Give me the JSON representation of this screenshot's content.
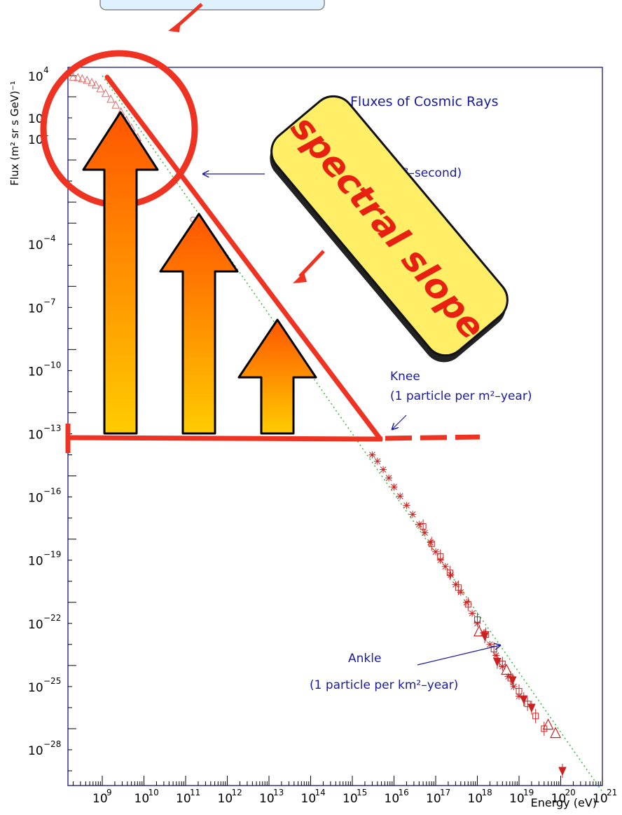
{
  "chart_data": {
    "type": "scatter",
    "title": "Fluxes of Cosmic Rays",
    "xlabel": "Energy (eV)",
    "ylabel": "Flux (m² sr s GeV)⁻¹",
    "x_scale": "log",
    "y_scale": "log",
    "xlim": [
      150000000.0,
      1e+21
    ],
    "ylim": [
      2e-30,
      25000.0
    ],
    "x_ticks": [
      {
        "value": 1000000000.0,
        "base": "10",
        "exp": "9"
      },
      {
        "value": 10000000000.0,
        "base": "10",
        "exp": "10"
      },
      {
        "value": 100000000000.0,
        "base": "10",
        "exp": "11"
      },
      {
        "value": 1000000000000.0,
        "base": "10",
        "exp": "12"
      },
      {
        "value": 10000000000000.0,
        "base": "10",
        "exp": "13"
      },
      {
        "value": 100000000000000.0,
        "base": "10",
        "exp": "14"
      },
      {
        "value": 1000000000000000.0,
        "base": "10",
        "exp": "15"
      },
      {
        "value": 1e+16,
        "base": "10",
        "exp": "16"
      },
      {
        "value": 1e+17,
        "base": "10",
        "exp": "17"
      },
      {
        "value": 1e+18,
        "base": "10",
        "exp": "18"
      },
      {
        "value": 1e+19,
        "base": "10",
        "exp": "19"
      },
      {
        "value": 1e+20,
        "base": "10",
        "exp": "20"
      },
      {
        "value": 1e+21,
        "base": "10",
        "exp": "21"
      }
    ],
    "y_ticks": [
      {
        "value": 10000.0,
        "base": "10",
        "exp": "4"
      },
      {
        "value": 10.0,
        "base": "10",
        "exp": "1"
      },
      {
        "value": 0.0001,
        "base": "10",
        "exp": "−4"
      },
      {
        "value": 1e-07,
        "base": "10",
        "exp": "−7"
      },
      {
        "value": 1e-10,
        "base": "10",
        "exp": "−10"
      },
      {
        "value": 1e-13,
        "base": "10",
        "exp": "−13"
      },
      {
        "value": 1e-16,
        "base": "10",
        "exp": "−16"
      },
      {
        "value": 1e-19,
        "base": "10",
        "exp": "−19"
      },
      {
        "value": 1e-22,
        "base": "10",
        "exp": "−22"
      },
      {
        "value": 1e-25,
        "base": "10",
        "exp": "−25"
      },
      {
        "value": 1e-28,
        "base": "10",
        "exp": "−28"
      }
    ],
    "y_tick_partial": {
      "value": 100.0,
      "base": "10",
      "exp": "2"
    },
    "series": [
      {
        "marker": "triangle-open",
        "color": "#e06a6a",
        "points": [
          [
            200000000.0,
            9000.0
          ],
          [
            260000000.0,
            8500.0
          ],
          [
            330000000.0,
            7500.0
          ],
          [
            430000000.0,
            6300.0
          ],
          [
            560000000.0,
            5000.0
          ],
          [
            700000000.0,
            3800.0
          ],
          [
            900000000.0,
            2500.0
          ],
          [
            1200000000.0,
            1500.0
          ],
          [
            1600000000.0,
            800
          ],
          [
            2100000000.0,
            420
          ],
          [
            2800000000.0,
            200
          ],
          [
            3800000000.0,
            80
          ],
          [
            5000000000.0,
            35
          ],
          [
            7000000000.0,
            12
          ]
        ]
      },
      {
        "marker": "circle-open",
        "color": "#e06a6a",
        "points": [
          [
            150000000000.0,
            0.0015
          ],
          [
            240000000000.0,
            0.0004
          ],
          [
            400000000000.0,
            0.0001
          ],
          [
            650000000000.0,
            2.5e-05
          ],
          [
            1000000000000.0,
            7e-06
          ]
        ]
      },
      {
        "marker": "star",
        "color": "#cc2020",
        "points": [
          [
            3000000000000000.0,
            1e-14
          ],
          [
            4000000000000000.0,
            5e-15
          ],
          [
            5500000000000000.0,
            2e-15
          ],
          [
            7500000000000000.0,
            8e-16
          ],
          [
            1e+16,
            3e-16
          ],
          [
            1.4e+16,
            1.1e-16
          ],
          [
            2e+16,
            4e-17
          ],
          [
            2.8e+16,
            1.5e-17
          ],
          [
            4e+16,
            5e-18
          ],
          [
            5.5e+16,
            2e-18
          ],
          [
            7.5e+16,
            7e-19
          ],
          [
            1e+17,
            2.5e-19
          ],
          [
            1.3e+17,
            1e-19
          ],
          [
            1.7e+17,
            5e-20
          ],
          [
            2.3e+17,
            2e-20
          ],
          [
            3e+17,
            7e-21
          ],
          [
            4e+17,
            3e-21
          ],
          [
            5.5e+17,
            1e-21
          ],
          [
            7.5e+17,
            3e-22
          ],
          [
            1e+18,
            1e-22
          ],
          [
            1.4e+18,
            3.5e-23
          ],
          [
            2e+18,
            1e-23
          ],
          [
            2.8e+18,
            3e-24
          ],
          [
            4e+18,
            9e-25
          ],
          [
            5.5e+18,
            3e-25
          ],
          [
            7.5e+18,
            1e-25
          ],
          [
            1e+19,
            3.5e-26
          ]
        ]
      },
      {
        "marker": "square-open",
        "color": "#cc2020",
        "points": [
          [
            5e+16,
            4e-18
          ],
          [
            8e+16,
            6e-19
          ],
          [
            1.3e+17,
            1.5e-19
          ],
          [
            2.2e+17,
            2.5e-20
          ],
          [
            3.5e+17,
            5e-21
          ],
          [
            6e+17,
            8e-22
          ],
          [
            1e+18,
            1.5e-22
          ],
          [
            1.6e+18,
            3e-23
          ],
          [
            2.5e+18,
            6e-24
          ],
          [
            4e+18,
            1.2e-24
          ],
          [
            6.3e+18,
            2.5e-25
          ],
          [
            1e+19,
            6e-26
          ],
          [
            1.6e+19,
            1.5e-26
          ],
          [
            2.5e+19,
            4e-27
          ],
          [
            4e+19,
            1e-27
          ]
        ]
      },
      {
        "marker": "triangle-open-large",
        "color": "#cc2020",
        "points": [
          [
            1.1e+18,
            4e-23
          ],
          [
            5e+18,
            6e-25
          ],
          [
            5e+19,
            1.5e-27
          ],
          [
            7.5e+19,
            6e-28
          ]
        ]
      },
      {
        "marker": "triangle-down",
        "color": "#cc2020",
        "points": [
          [
            1.5e+18,
            2.5e-23
          ],
          [
            3e+18,
            1.5e-24
          ],
          [
            7e+18,
            2e-25
          ],
          [
            1.3e+19,
            2.5e-26
          ],
          [
            2e+19,
            1e-26
          ],
          [
            1.1e+20,
            1e-29
          ]
        ]
      }
    ],
    "reference_line": {
      "style": "dotted",
      "color": "#44bb44",
      "x": [
        1000000000.0,
        1e+21
      ],
      "y": [
        10000.0,
        1e-30
      ]
    },
    "annotations": {
      "ankle_title": "Ankle",
      "ankle_rate": "(1 particle per km²–year)",
      "knee_title": "Knee",
      "knee_rate": "(1 particle per m²–year)",
      "lowenergy_rate_prefix": "(",
      "lowenergy_rate_suffix": "m²–second)"
    },
    "grid": false,
    "overlay_text": "spectral slope"
  },
  "colors": {
    "axes": "#000080",
    "annotation_text": "#1a1aa0",
    "overlay_red": "#ee3322",
    "arrow_top": "#ff5500",
    "arrow_bottom": "#ffcc00",
    "callout_fill": "#ffee66"
  }
}
